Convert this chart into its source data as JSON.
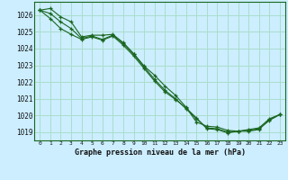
{
  "title": "Graphe pression niveau de la mer (hPa)",
  "bg_color": "#cceeff",
  "grid_color": "#aaddcc",
  "line_color": "#1a6620",
  "x_ticks": [
    0,
    1,
    2,
    3,
    4,
    5,
    6,
    7,
    8,
    9,
    10,
    11,
    12,
    13,
    14,
    15,
    16,
    17,
    18,
    19,
    20,
    21,
    22,
    23
  ],
  "ylim": [
    1018.5,
    1026.8
  ],
  "y_ticks": [
    1019,
    1020,
    1021,
    1022,
    1023,
    1024,
    1025,
    1026
  ],
  "line1": [
    1026.3,
    1026.4,
    1025.9,
    1025.6,
    1024.7,
    1024.8,
    1024.8,
    1024.85,
    1024.35,
    1023.7,
    1022.95,
    1022.4,
    1021.75,
    1021.2,
    1020.5,
    1019.6,
    1019.35,
    1019.3,
    1019.1,
    1019.05,
    1019.15,
    1019.25,
    1019.8,
    1020.05
  ],
  "line2": [
    1026.3,
    1026.1,
    1025.6,
    1025.2,
    1024.6,
    1024.75,
    1024.55,
    1024.8,
    1024.3,
    1023.65,
    1022.9,
    1022.15,
    1021.5,
    1021.0,
    1020.4,
    1019.8,
    1019.25,
    1019.2,
    1019.0,
    1019.05,
    1019.1,
    1019.2,
    1019.7,
    1020.05
  ],
  "line3": [
    1026.3,
    1025.8,
    1025.2,
    1024.85,
    1024.55,
    1024.7,
    1024.5,
    1024.75,
    1024.2,
    1023.55,
    1022.8,
    1022.05,
    1021.4,
    1020.95,
    1020.45,
    1019.85,
    1019.2,
    1019.15,
    1018.95,
    1019.05,
    1019.05,
    1019.15,
    1019.75,
    1020.05
  ],
  "figsize": [
    3.2,
    2.0
  ],
  "dpi": 100
}
